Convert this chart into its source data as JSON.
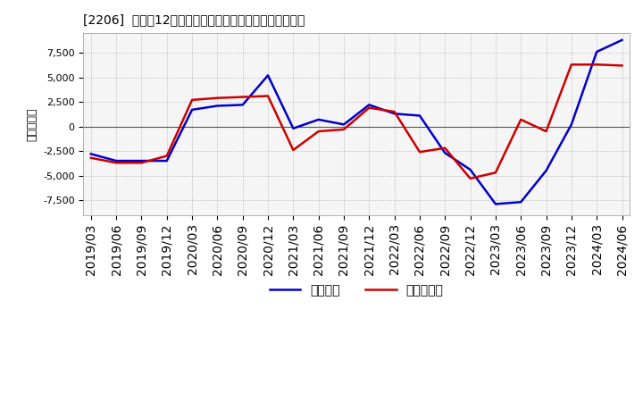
{
  "title": "[2206]  利益の12か月移動合計の対前年同期増減額の推移",
  "ylabel": "（百万円）",
  "background_color": "#ffffff",
  "plot_bg_color": "#f5f5f5",
  "grid_color": "#aaaaaa",
  "dates": [
    "2019/03",
    "2019/06",
    "2019/09",
    "2019/12",
    "2020/03",
    "2020/06",
    "2020/09",
    "2020/12",
    "2021/03",
    "2021/06",
    "2021/09",
    "2021/12",
    "2022/03",
    "2022/06",
    "2022/09",
    "2022/12",
    "2023/03",
    "2023/06",
    "2023/09",
    "2023/12",
    "2024/03",
    "2024/06"
  ],
  "keijo_rieki": [
    -2800,
    -3500,
    -3500,
    -3500,
    1700,
    2100,
    2200,
    5200,
    -200,
    700,
    200,
    2200,
    1300,
    1100,
    -2700,
    -4400,
    -7900,
    -7700,
    -4500,
    200,
    7600,
    8800
  ],
  "touki_junrieki": [
    -3200,
    -3700,
    -3700,
    -3000,
    2700,
    2900,
    3000,
    3100,
    -2400,
    -500,
    -300,
    1900,
    1500,
    -2600,
    -2200,
    -5300,
    -4700,
    700,
    -500,
    6300,
    6300,
    6200
  ],
  "keijo_color": "#0000cc",
  "touki_color": "#cc0000",
  "ylim": [
    -9000,
    9500
  ],
  "yticks": [
    -7500,
    -5000,
    -2500,
    0,
    2500,
    5000,
    7500
  ],
  "legend_keijo": "経常利益",
  "legend_touki": "当期純利益",
  "line_width": 1.8,
  "title_fontsize": 12,
  "axis_fontsize": 8,
  "legend_fontsize": 10
}
